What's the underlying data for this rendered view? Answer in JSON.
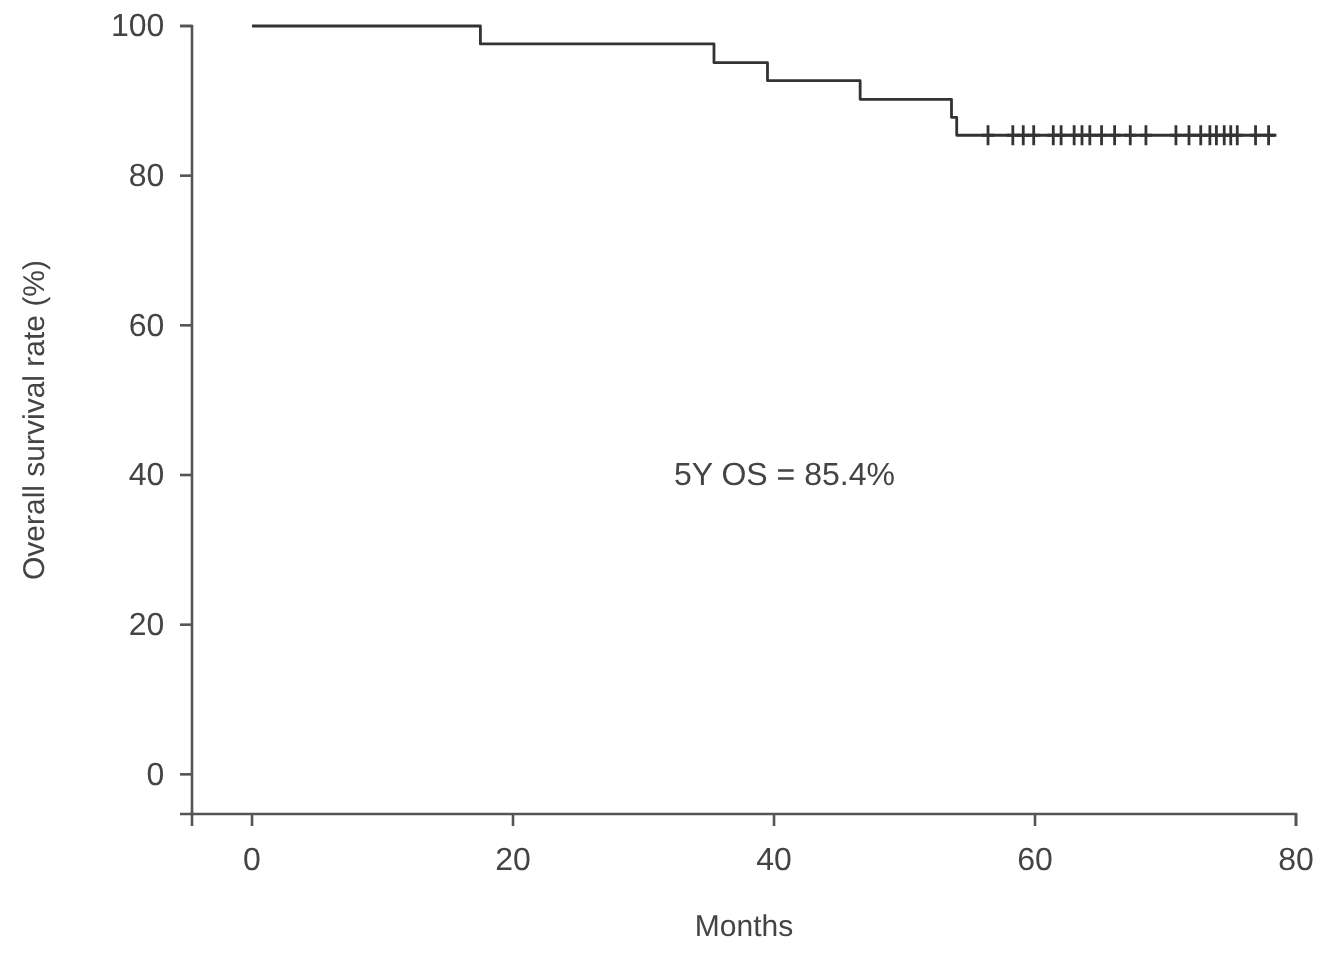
{
  "chart_data": {
    "type": "step",
    "xlabel": "Months",
    "ylabel": "Overall survival rate (%)",
    "xlim": [
      -4.6,
      80
    ],
    "ylim": [
      -5.3,
      100
    ],
    "xticks": [
      0,
      20,
      40,
      60,
      80
    ],
    "yticks": [
      0,
      20,
      40,
      60,
      80,
      100
    ],
    "grid": false,
    "annotations": [
      "5Y OS = 85.4%"
    ],
    "series": [
      {
        "type": "step",
        "color": "#333333",
        "marker": "none",
        "x": [
          0,
          17.5,
          35.4,
          39.5,
          46.6,
          53.6,
          54,
          78.5
        ],
        "values": [
          100,
          97.6,
          95.1,
          92.7,
          90.2,
          87.8,
          85.4,
          85.4
        ]
      },
      {
        "type": "scatter",
        "color": "#333333",
        "marker": "cross",
        "x": [
          56.4,
          58.3,
          59.1,
          59.9,
          61.4,
          62.0,
          63.0,
          63.6,
          64.2,
          65.1,
          66.1,
          67.3,
          68.5,
          70.8,
          71.8,
          72.7,
          73.4,
          73.9,
          74.5,
          75.0,
          75.5,
          76.9,
          77.9
        ],
        "values": [
          85.4,
          85.4,
          85.4,
          85.4,
          85.4,
          85.4,
          85.4,
          85.4,
          85.4,
          85.4,
          85.4,
          85.4,
          85.4,
          85.4,
          85.4,
          85.4,
          85.4,
          85.4,
          85.4,
          85.4,
          85.4,
          85.4,
          85.4
        ]
      }
    ]
  }
}
